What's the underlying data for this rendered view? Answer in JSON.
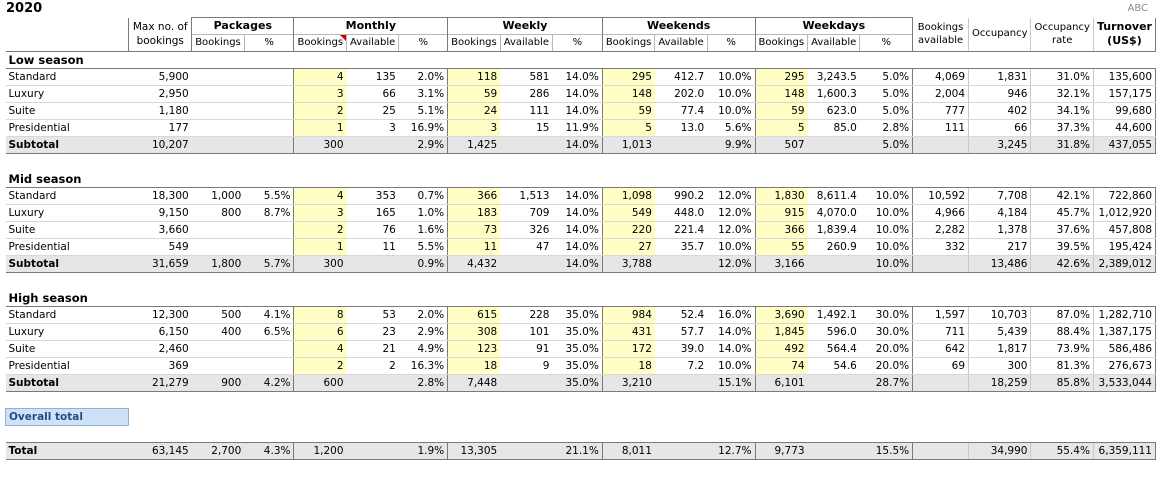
{
  "title": "2020",
  "brand": "ABC",
  "header": {
    "max_bookings": "Max no. of bookings",
    "groups": {
      "packages": "Packages",
      "monthly": "Monthly",
      "weekly": "Weekly",
      "weekends": "Weekends",
      "weekdays": "Weekdays"
    },
    "sub": {
      "bookings": "Bookings",
      "available": "Available",
      "pct": "%"
    },
    "bookings_available": "Bookings available",
    "occupancy": "Occupancy",
    "occupancy_rate": "Occupancy rate",
    "turnover": "Turnover (US$)"
  },
  "seasons": [
    {
      "name": "Low season",
      "rows": [
        {
          "label": "Standard",
          "max": "5,900",
          "pkg_b": "",
          "pkg_p": "",
          "m_b": "4",
          "m_a": "135",
          "m_p": "2.0%",
          "w_b": "118",
          "w_a": "581",
          "w_p": "14.0%",
          "we_b": "295",
          "we_a": "412.7",
          "we_p": "10.0%",
          "wd_b": "295",
          "wd_a": "3,243.5",
          "wd_p": "5.0%",
          "avail": "4,069",
          "occ": "1,831",
          "rate": "31.0%",
          "turn": "135,600"
        },
        {
          "label": "Luxury",
          "max": "2,950",
          "pkg_b": "",
          "pkg_p": "",
          "m_b": "3",
          "m_a": "66",
          "m_p": "3.1%",
          "w_b": "59",
          "w_a": "286",
          "w_p": "14.0%",
          "we_b": "148",
          "we_a": "202.0",
          "we_p": "10.0%",
          "wd_b": "148",
          "wd_a": "1,600.3",
          "wd_p": "5.0%",
          "avail": "2,004",
          "occ": "946",
          "rate": "32.1%",
          "turn": "157,175"
        },
        {
          "label": "Suite",
          "max": "1,180",
          "pkg_b": "",
          "pkg_p": "",
          "m_b": "2",
          "m_a": "25",
          "m_p": "5.1%",
          "w_b": "24",
          "w_a": "111",
          "w_p": "14.0%",
          "we_b": "59",
          "we_a": "77.4",
          "we_p": "10.0%",
          "wd_b": "59",
          "wd_a": "623.0",
          "wd_p": "5.0%",
          "avail": "777",
          "occ": "402",
          "rate": "34.1%",
          "turn": "99,680"
        },
        {
          "label": "Presidential",
          "max": "177",
          "pkg_b": "",
          "pkg_p": "",
          "m_b": "1",
          "m_a": "3",
          "m_p": "16.9%",
          "w_b": "3",
          "w_a": "15",
          "w_p": "11.9%",
          "we_b": "5",
          "we_a": "13.0",
          "we_p": "5.6%",
          "wd_b": "5",
          "wd_a": "85.0",
          "wd_p": "2.8%",
          "avail": "111",
          "occ": "66",
          "rate": "37.3%",
          "turn": "44,600"
        }
      ],
      "subtotal": {
        "label": "Subtotal",
        "max": "10,207",
        "pkg_b": "",
        "pkg_p": "",
        "m_b": "300",
        "m_a": "",
        "m_p": "2.9%",
        "w_b": "1,425",
        "w_a": "",
        "w_p": "14.0%",
        "we_b": "1,013",
        "we_a": "",
        "we_p": "9.9%",
        "wd_b": "507",
        "wd_a": "",
        "wd_p": "5.0%",
        "avail": "",
        "occ": "3,245",
        "rate": "31.8%",
        "turn": "437,055"
      }
    },
    {
      "name": "Mid season",
      "rows": [
        {
          "label": "Standard",
          "max": "18,300",
          "pkg_b": "1,000",
          "pkg_p": "5.5%",
          "m_b": "4",
          "m_a": "353",
          "m_p": "0.7%",
          "w_b": "366",
          "w_a": "1,513",
          "w_p": "14.0%",
          "we_b": "1,098",
          "we_a": "990.2",
          "we_p": "12.0%",
          "wd_b": "1,830",
          "wd_a": "8,611.4",
          "wd_p": "10.0%",
          "avail": "10,592",
          "occ": "7,708",
          "rate": "42.1%",
          "turn": "722,860"
        },
        {
          "label": "Luxury",
          "max": "9,150",
          "pkg_b": "800",
          "pkg_p": "8.7%",
          "m_b": "3",
          "m_a": "165",
          "m_p": "1.0%",
          "w_b": "183",
          "w_a": "709",
          "w_p": "14.0%",
          "we_b": "549",
          "we_a": "448.0",
          "we_p": "12.0%",
          "wd_b": "915",
          "wd_a": "4,070.0",
          "wd_p": "10.0%",
          "avail": "4,966",
          "occ": "4,184",
          "rate": "45.7%",
          "turn": "1,012,920"
        },
        {
          "label": "Suite",
          "max": "3,660",
          "pkg_b": "",
          "pkg_p": "",
          "m_b": "2",
          "m_a": "76",
          "m_p": "1.6%",
          "w_b": "73",
          "w_a": "326",
          "w_p": "14.0%",
          "we_b": "220",
          "we_a": "221.4",
          "we_p": "12.0%",
          "wd_b": "366",
          "wd_a": "1,839.4",
          "wd_p": "10.0%",
          "avail": "2,282",
          "occ": "1,378",
          "rate": "37.6%",
          "turn": "457,808"
        },
        {
          "label": "Presidential",
          "max": "549",
          "pkg_b": "",
          "pkg_p": "",
          "m_b": "1",
          "m_a": "11",
          "m_p": "5.5%",
          "w_b": "11",
          "w_a": "47",
          "w_p": "14.0%",
          "we_b": "27",
          "we_a": "35.7",
          "we_p": "10.0%",
          "wd_b": "55",
          "wd_a": "260.9",
          "wd_p": "10.0%",
          "avail": "332",
          "occ": "217",
          "rate": "39.5%",
          "turn": "195,424"
        }
      ],
      "subtotal": {
        "label": "Subtotal",
        "max": "31,659",
        "pkg_b": "1,800",
        "pkg_p": "5.7%",
        "m_b": "300",
        "m_a": "",
        "m_p": "0.9%",
        "w_b": "4,432",
        "w_a": "",
        "w_p": "14.0%",
        "we_b": "3,788",
        "we_a": "",
        "we_p": "12.0%",
        "wd_b": "3,166",
        "wd_a": "",
        "wd_p": "10.0%",
        "avail": "",
        "occ": "13,486",
        "rate": "42.6%",
        "turn": "2,389,012"
      }
    },
    {
      "name": "High season",
      "rows": [
        {
          "label": "Standard",
          "max": "12,300",
          "pkg_b": "500",
          "pkg_p": "4.1%",
          "m_b": "8",
          "m_a": "53",
          "m_p": "2.0%",
          "w_b": "615",
          "w_a": "228",
          "w_p": "35.0%",
          "we_b": "984",
          "we_a": "52.4",
          "we_p": "16.0%",
          "wd_b": "3,690",
          "wd_a": "1,492.1",
          "wd_p": "30.0%",
          "avail": "1,597",
          "occ": "10,703",
          "rate": "87.0%",
          "turn": "1,282,710"
        },
        {
          "label": "Luxury",
          "max": "6,150",
          "pkg_b": "400",
          "pkg_p": "6.5%",
          "m_b": "6",
          "m_a": "23",
          "m_p": "2.9%",
          "w_b": "308",
          "w_a": "101",
          "w_p": "35.0%",
          "we_b": "431",
          "we_a": "57.7",
          "we_p": "14.0%",
          "wd_b": "1,845",
          "wd_a": "596.0",
          "wd_p": "30.0%",
          "avail": "711",
          "occ": "5,439",
          "rate": "88.4%",
          "turn": "1,387,175"
        },
        {
          "label": "Suite",
          "max": "2,460",
          "pkg_b": "",
          "pkg_p": "",
          "m_b": "4",
          "m_a": "21",
          "m_p": "4.9%",
          "w_b": "123",
          "w_a": "91",
          "w_p": "35.0%",
          "we_b": "172",
          "we_a": "39.0",
          "we_p": "14.0%",
          "wd_b": "492",
          "wd_a": "564.4",
          "wd_p": "20.0%",
          "avail": "642",
          "occ": "1,817",
          "rate": "73.9%",
          "turn": "586,486"
        },
        {
          "label": "Presidential",
          "max": "369",
          "pkg_b": "",
          "pkg_p": "",
          "m_b": "2",
          "m_a": "2",
          "m_p": "16.3%",
          "w_b": "18",
          "w_a": "9",
          "w_p": "35.0%",
          "we_b": "18",
          "we_a": "7.2",
          "we_p": "10.0%",
          "wd_b": "74",
          "wd_a": "54.6",
          "wd_p": "20.0%",
          "avail": "69",
          "occ": "300",
          "rate": "81.3%",
          "turn": "276,673"
        }
      ],
      "subtotal": {
        "label": "Subtotal",
        "max": "21,279",
        "pkg_b": "900",
        "pkg_p": "4.2%",
        "m_b": "600",
        "m_a": "",
        "m_p": "2.8%",
        "w_b": "7,448",
        "w_a": "",
        "w_p": "35.0%",
        "we_b": "3,210",
        "we_a": "",
        "we_p": "15.1%",
        "wd_b": "6,101",
        "wd_a": "",
        "wd_p": "28.7%",
        "avail": "",
        "occ": "18,259",
        "rate": "85.8%",
        "turn": "3,533,044"
      }
    }
  ],
  "overall_label": "Overall total",
  "total": {
    "label": "Total",
    "max": "63,145",
    "pkg_b": "2,700",
    "pkg_p": "4.3%",
    "m_b": "1,200",
    "m_a": "",
    "m_p": "1.9%",
    "w_b": "13,305",
    "w_a": "",
    "w_p": "21.1%",
    "we_b": "8,011",
    "we_a": "",
    "we_p": "12.7%",
    "wd_b": "9,773",
    "wd_a": "",
    "wd_p": "15.5%",
    "avail": "",
    "occ": "34,990",
    "rate": "55.4%",
    "turn": "6,359,111"
  }
}
